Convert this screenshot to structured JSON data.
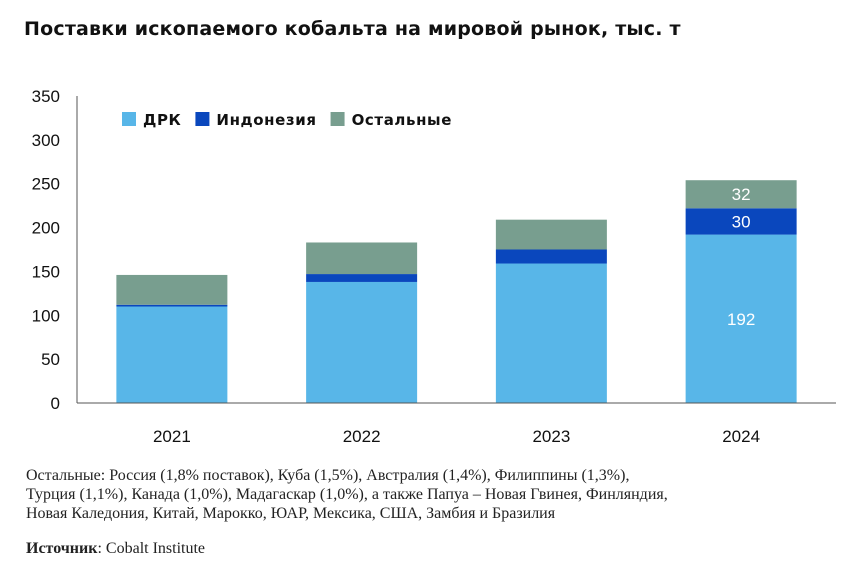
{
  "title": "Поставки ископаемого кобальта на мировой рынок, тыс. т",
  "chart_data": {
    "type": "bar",
    "stacked": true,
    "categories": [
      "2021",
      "2022",
      "2023",
      "2024"
    ],
    "series": [
      {
        "name": "ДРК",
        "color": "#58b6e8",
        "values": [
          110,
          138,
          159,
          192
        ]
      },
      {
        "name": "Индонезия",
        "color": "#0a47bd",
        "values": [
          2,
          9,
          16,
          30
        ]
      },
      {
        "name": "Остальные",
        "color": "#789e8f",
        "values": [
          34,
          36,
          34,
          32
        ]
      }
    ],
    "data_labels": {
      "2024": [
        "192",
        "30",
        "32"
      ]
    },
    "yticks": [
      "0",
      "50",
      "100",
      "150",
      "200",
      "250",
      "300",
      "350"
    ],
    "ylim": [
      0,
      350
    ],
    "legend_position": "top-left",
    "grid": false
  },
  "note_lines": [
    "Остальные: Россия (1,8% поставок), Куба (1,5%), Австралия (1,4%),  Филиппины (1,3%),",
    "Турция (1,1%), Канада (1,0%), Мадагаскар (1,0%),  а также Папуа – Новая Гвинея, Финляндия,",
    "Новая Каледония, Китай, Марокко, ЮАР, Мексика, США, Замбия и Бразилия"
  ],
  "source": {
    "label": "Источник",
    "separator": ":",
    "text": " Cobalt Institute"
  }
}
